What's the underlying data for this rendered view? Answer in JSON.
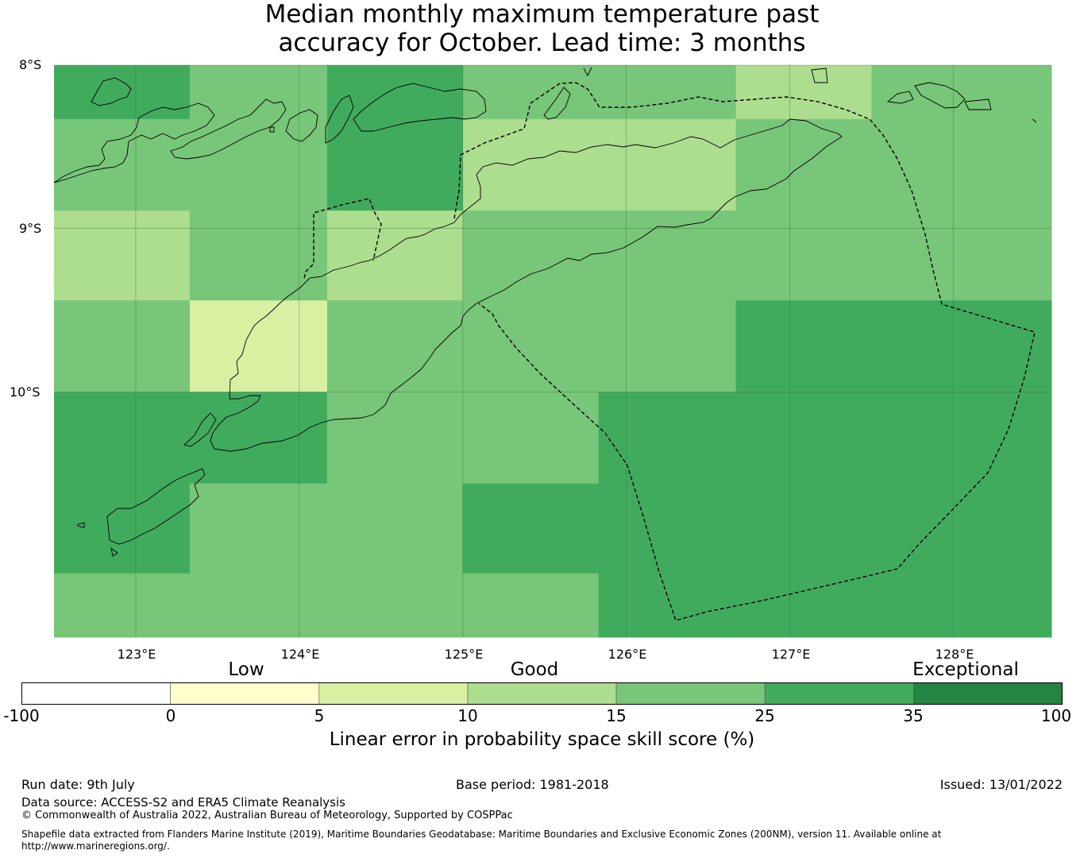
{
  "title": {
    "line1": "Median monthly maximum temperature past",
    "line2": "accuracy for October. Lead time: 3 months"
  },
  "map": {
    "lat_labels": [
      "8°S",
      "9°S",
      "10°S"
    ],
    "lon_labels": [
      "123°E",
      "124°E",
      "125°E",
      "126°E",
      "127°E",
      "128°E"
    ],
    "lon_range": [
      122.5,
      128.6
    ],
    "lat_range": [
      -8.0,
      -11.5
    ],
    "grid_lons": [
      123,
      124,
      125,
      126,
      127,
      128
    ],
    "grid_lats": [
      -8,
      -9,
      -10
    ],
    "cell_lon_edges": [
      122.5,
      123.33,
      124.17,
      125.0,
      125.83,
      126.67,
      127.5,
      128.6
    ],
    "cell_lat_edges": [
      -8.0,
      -8.33,
      -8.89,
      -9.44,
      -10.0,
      -10.56,
      -11.11,
      -11.5
    ],
    "cells": [
      [
        3,
        2,
        3,
        2,
        2,
        1,
        2
      ],
      [
        2,
        2,
        3,
        1,
        1,
        2,
        2
      ],
      [
        1,
        2,
        1,
        2,
        2,
        2,
        2
      ],
      [
        2,
        0,
        2,
        2,
        2,
        3,
        3
      ],
      [
        3,
        3,
        2,
        2,
        3,
        3,
        3
      ],
      [
        3,
        2,
        2,
        3,
        3,
        3,
        3
      ],
      [
        2,
        2,
        2,
        2,
        3,
        3,
        3
      ]
    ],
    "cell_palette": [
      "#d9f0a3",
      "#addd8e",
      "#78c679",
      "#41ab5d"
    ]
  },
  "colorbar": {
    "categories": [
      "Low",
      "Good",
      "Exceptional"
    ],
    "ticks": [
      "-100",
      "0",
      "5",
      "10",
      "15",
      "25",
      "35",
      "100"
    ],
    "colors": [
      "#ffffff",
      "#ffffcc",
      "#d9f0a3",
      "#addd8e",
      "#78c679",
      "#41ab5d",
      "#238443"
    ],
    "label": "Linear error in probability space skill score (%)"
  },
  "footer": {
    "run_date": "Run date: 9th July",
    "base_period": "Base period: 1981-2018",
    "issued": "Issued: 13/01/2022",
    "data_source": "Data source: ACCESS-S2 and ERA5 Climate Reanalysis",
    "copyright": "© Commonwealth of Australia 2022, Australian Bureau of Meteorology, Supported by COSPPac",
    "shapefile_line1": "Shapefile data extracted from Flanders Marine Institute (2019), Maritime Boundaries Geodatabase: Maritime Boundaries and Exclusive Economic Zones (200NM), version 11. Available online at",
    "shapefile_line2": "http://www.marineregions.org/."
  }
}
